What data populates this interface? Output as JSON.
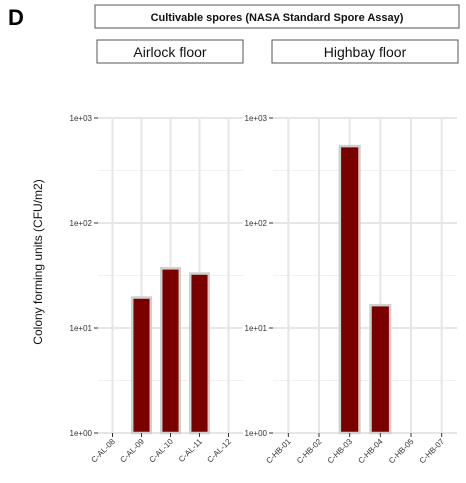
{
  "panel_letter": "D",
  "chart_data": {
    "type": "bar",
    "title": "Cultivable spores (NASA Standard Spore Assay)",
    "ylabel": "Colony forming units (CFU/m2)",
    "yscale": "log10",
    "ylim": [
      1,
      1000
    ],
    "yticks": [
      {
        "value": 1,
        "label": "1e+00"
      },
      {
        "value": 10,
        "label": "1e+01"
      },
      {
        "value": 100,
        "label": "1e+02"
      },
      {
        "value": 1000,
        "label": "1e+03"
      }
    ],
    "bar_color": "#7a0000",
    "facets": [
      {
        "name": "Airlock floor",
        "categories": [
          "C-AL-08",
          "C-AL-09",
          "C-AL-10",
          "C-AL-11",
          "C-AL-12"
        ],
        "values": [
          null,
          19.5,
          37,
          33,
          null
        ]
      },
      {
        "name": "Highbay floor",
        "categories": [
          "C-HB-01",
          "C-HB-02",
          "C-HB-03",
          "C-HB-04",
          "C-HB-05",
          "C-HB-07"
        ],
        "values": [
          null,
          null,
          540,
          16.5,
          null,
          null
        ]
      }
    ]
  }
}
